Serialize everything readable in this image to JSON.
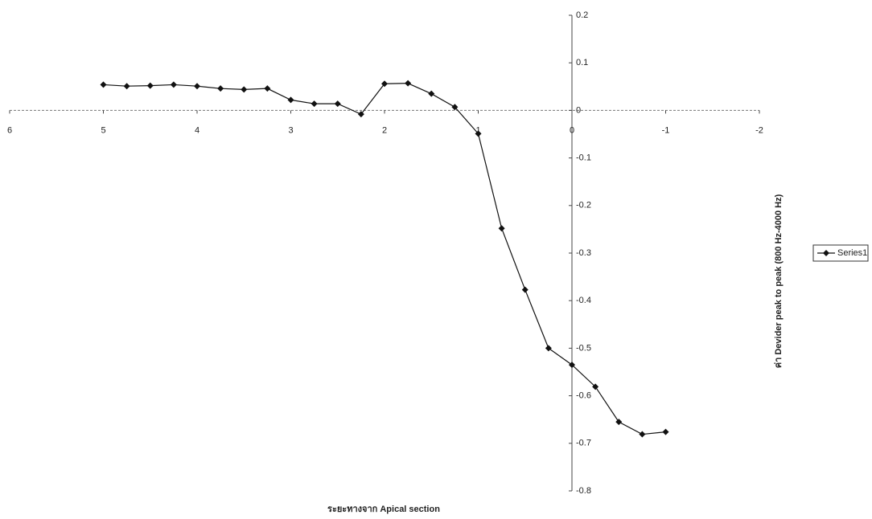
{
  "chart_data": {
    "type": "line",
    "x_label": "ระยะทางจาก Apical section",
    "y_label": "ค่า Devider peak to peak (800 Hz-4000 Hz)",
    "x": [
      5,
      4.75,
      4.5,
      4.25,
      4,
      3.75,
      3.5,
      3.25,
      3,
      2.75,
      2.5,
      2.25,
      2,
      1.75,
      1.5,
      1.25,
      1,
      0.75,
      0.5,
      0.25,
      0,
      -0.25,
      -0.5,
      -0.75,
      -1
    ],
    "series": [
      {
        "name": "Series1",
        "color": "#111111",
        "values": [
          0.054,
          0.051,
          0.052,
          0.054,
          0.051,
          0.046,
          0.044,
          0.046,
          0.022,
          0.014,
          0.014,
          -0.008,
          0.056,
          0.057,
          0.035,
          0.007,
          -0.049,
          -0.248,
          -0.377,
          -0.5,
          -0.535,
          -0.581,
          -0.655,
          -0.681,
          -0.676
        ]
      }
    ],
    "xlim": [
      6,
      -2
    ],
    "xticks": [
      6,
      5,
      4,
      3,
      2,
      1,
      0,
      -1,
      -2
    ],
    "ylim": [
      -0.8,
      0.2
    ],
    "yticks": [
      0.2,
      0.1,
      0,
      -0.1,
      -0.2,
      -0.3,
      -0.4,
      -0.5,
      -0.6,
      -0.7,
      -0.8
    ],
    "legend": "right"
  }
}
